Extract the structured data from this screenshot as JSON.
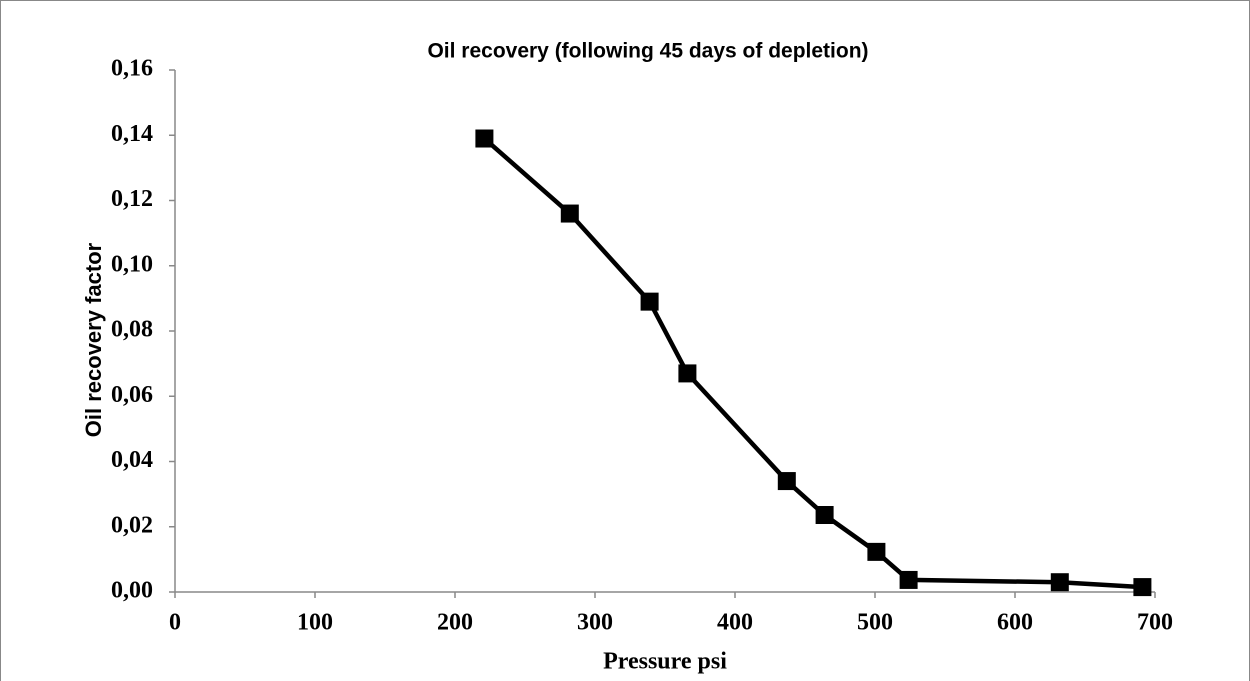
{
  "chart_data": {
    "type": "line",
    "title": "Oil recovery (following 45 days of depletion)",
    "x_label": "Pressure psi",
    "y_label": "Oil recovery factor",
    "x": [
      221,
      282,
      339,
      366,
      437,
      464,
      501,
      524,
      632,
      691
    ],
    "values": [
      0.139,
      0.116,
      0.089,
      0.067,
      0.034,
      0.0236,
      0.0123,
      0.0037,
      0.003,
      0.0015
    ],
    "color": "#000000",
    "marker": "square",
    "grid": false,
    "xlim": [
      0,
      700
    ],
    "xticks": [
      0,
      100,
      200,
      300,
      400,
      500,
      600,
      700
    ],
    "ylim": [
      0,
      0.16
    ],
    "yticks": [
      {
        "value": 0,
        "label": "0,00"
      },
      {
        "value": 0.02,
        "label": "0,02"
      },
      {
        "value": 0.04,
        "label": "0,04"
      },
      {
        "value": 0.06,
        "label": "0,06"
      },
      {
        "value": 0.08,
        "label": "0,08"
      },
      {
        "value": 0.1,
        "label": "0,10"
      },
      {
        "value": 0.12,
        "label": "0,12"
      },
      {
        "value": 0.14,
        "label": "0,14"
      },
      {
        "value": 0.16,
        "label": "0,16"
      }
    ]
  }
}
